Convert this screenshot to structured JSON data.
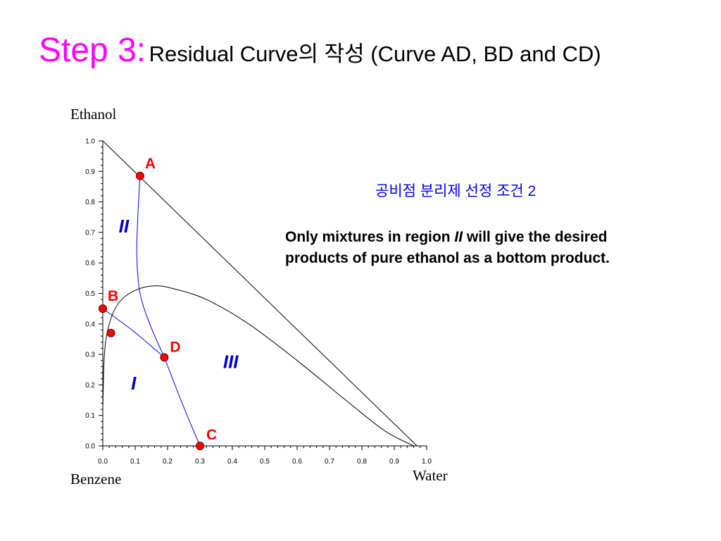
{
  "title": {
    "step": "Step 3:",
    "rest": "Residual Curve의 작성 (Curve AD, BD and CD)"
  },
  "axes": {
    "top": "Ethanol",
    "bottom_left": "Benzene",
    "bottom_right": "Water"
  },
  "condition": "공비점 분리제 선정 조건 2",
  "note": {
    "line1_pre": "Only mixtures in region ",
    "line1_em": "II",
    "line1_post": " will give the desired",
    "line2": "products of pure ethanol as a bottom product."
  },
  "colors": {
    "title_accent": "#ff00ff",
    "residue_curves": "#0000ff",
    "points": "#ff0000",
    "regions": "#0000cc",
    "condition": "#0000ff"
  },
  "chart_data": {
    "type": "scatter",
    "xlabel": "Water",
    "ylabel": "Ethanol",
    "xlim": [
      0,
      1
    ],
    "ylim": [
      0,
      1
    ],
    "x_ticks": [
      "0.0",
      "0.1",
      "0.2",
      "0.3",
      "0.4",
      "0.5",
      "0.6",
      "0.7",
      "0.8",
      "0.9",
      "1.0"
    ],
    "y_ticks": [
      "0.0",
      "0.1",
      "0.2",
      "0.3",
      "0.4",
      "0.5",
      "0.6",
      "0.7",
      "0.8",
      "0.9",
      "1.0"
    ],
    "boundary_line": [
      [
        0,
        1
      ],
      [
        0.97,
        0
      ]
    ],
    "binodal": [
      [
        0,
        0.12
      ],
      [
        0.005,
        0.3
      ],
      [
        0.02,
        0.4
      ],
      [
        0.05,
        0.47
      ],
      [
        0.1,
        0.51
      ],
      [
        0.16,
        0.525
      ],
      [
        0.22,
        0.515
      ],
      [
        0.32,
        0.48
      ],
      [
        0.45,
        0.4
      ],
      [
        0.6,
        0.28
      ],
      [
        0.75,
        0.15
      ],
      [
        0.87,
        0.05
      ],
      [
        0.96,
        0
      ]
    ],
    "points": [
      {
        "label": "A",
        "x": 0.115,
        "y": 0.885
      },
      {
        "label": "B",
        "x": 0.0,
        "y": 0.45
      },
      {
        "label": "",
        "x": 0.025,
        "y": 0.37
      },
      {
        "label": "D",
        "x": 0.19,
        "y": 0.29
      },
      {
        "label": "C",
        "x": 0.3,
        "y": 0.0
      }
    ],
    "residue_curves": [
      {
        "name": "AD",
        "points": [
          [
            0.115,
            0.885
          ],
          [
            0.108,
            0.75
          ],
          [
            0.105,
            0.62
          ],
          [
            0.115,
            0.5
          ],
          [
            0.145,
            0.4
          ],
          [
            0.19,
            0.29
          ]
        ]
      },
      {
        "name": "BD",
        "points": [
          [
            0.0,
            0.45
          ],
          [
            0.09,
            0.38
          ],
          [
            0.19,
            0.29
          ]
        ]
      },
      {
        "name": "CD",
        "points": [
          [
            0.19,
            0.29
          ],
          [
            0.245,
            0.14
          ],
          [
            0.3,
            0.0
          ]
        ]
      }
    ],
    "regions": [
      {
        "label": "II",
        "x": 0.065,
        "y": 0.7
      },
      {
        "label": "I",
        "x": 0.095,
        "y": 0.185
      },
      {
        "label": "III",
        "x": 0.395,
        "y": 0.255
      }
    ]
  }
}
